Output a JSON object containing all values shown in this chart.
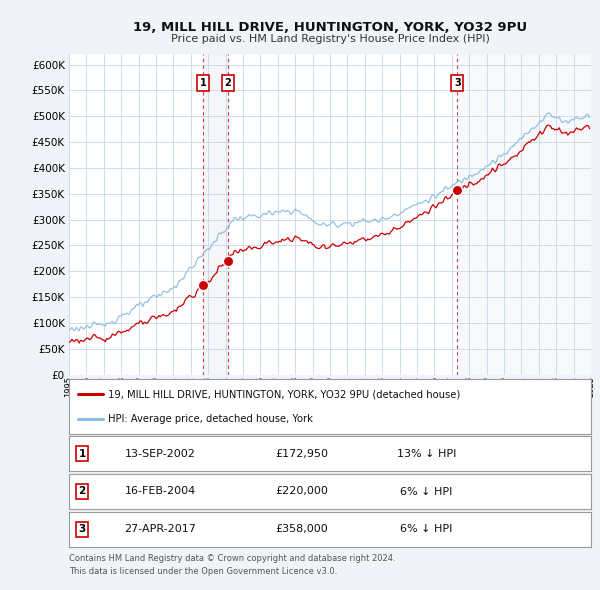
{
  "title": "19, MILL HILL DRIVE, HUNTINGTON, YORK, YO32 9PU",
  "subtitle": "Price paid vs. HM Land Registry's House Price Index (HPI)",
  "legend_house": "19, MILL HILL DRIVE, HUNTINGTON, YORK, YO32 9PU (detached house)",
  "legend_hpi": "HPI: Average price, detached house, York",
  "footer1": "Contains HM Land Registry data © Crown copyright and database right 2024.",
  "footer2": "This data is licensed under the Open Government Licence v3.0.",
  "house_color": "#cc0000",
  "hpi_color": "#88bbdd",
  "background_color": "#f0f4f8",
  "plot_bg_color": "#ffffff",
  "grid_color": "#c8d8e8",
  "ylim": [
    0,
    620000
  ],
  "yticks": [
    0,
    50000,
    100000,
    150000,
    200000,
    250000,
    300000,
    350000,
    400000,
    450000,
    500000,
    550000,
    600000
  ],
  "sales": [
    {
      "label": "1",
      "date": "13-SEP-2002",
      "price": 172950,
      "pct": "13%",
      "direction": "↓",
      "x": 2002.71
    },
    {
      "label": "2",
      "date": "16-FEB-2004",
      "price": 220000,
      "pct": "6%",
      "direction": "↓",
      "x": 2004.12
    },
    {
      "label": "3",
      "date": "27-APR-2017",
      "price": 358000,
      "pct": "6%",
      "direction": "↓",
      "x": 2017.32
    }
  ],
  "xmin": 1995,
  "xmax": 2025,
  "price_format_172950": "£172,950",
  "price_format_220000": "£220,000",
  "price_format_358000": "£358,000"
}
